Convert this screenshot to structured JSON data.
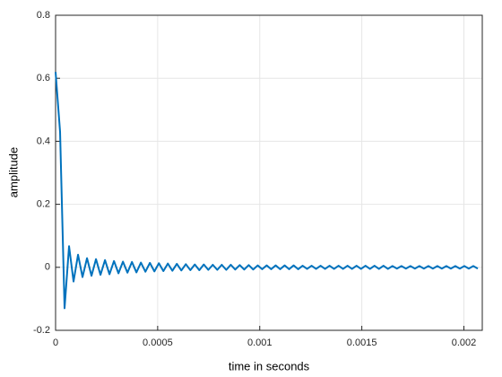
{
  "chart_data": {
    "type": "line",
    "xlabel": "time in seconds",
    "ylabel": "amplitude",
    "x": [
      0,
      2.2e-05,
      4.4e-05,
      6.6e-05,
      8.8e-05,
      0.00011,
      0.000132,
      0.000154,
      0.000176,
      0.000198,
      0.00022,
      0.000242,
      0.000264,
      0.000286,
      0.000308,
      0.00033,
      0.000352,
      0.000374,
      0.000396,
      0.000418,
      0.00044,
      0.000462,
      0.000484,
      0.000506,
      0.000528,
      0.00055,
      0.000572,
      0.000594,
      0.000616,
      0.000638,
      0.00066,
      0.000682,
      0.000704,
      0.000726,
      0.000748,
      0.00077,
      0.000792,
      0.000814,
      0.000836,
      0.000858,
      0.00088,
      0.000902,
      0.000924,
      0.000946,
      0.000968,
      0.00099,
      0.001012,
      0.001034,
      0.001056,
      0.001078,
      0.0011,
      0.001122,
      0.001144,
      0.001166,
      0.001188,
      0.00121,
      0.001232,
      0.001254,
      0.001276,
      0.001298,
      0.00132,
      0.001342,
      0.001364,
      0.001386,
      0.001408,
      0.00143,
      0.001452,
      0.001474,
      0.001496,
      0.001518,
      0.00154,
      0.001562,
      0.001584,
      0.001606,
      0.001628,
      0.00165,
      0.001672,
      0.001694,
      0.001716,
      0.001738,
      0.00176,
      0.001782,
      0.001804,
      0.001826,
      0.001848,
      0.00187,
      0.001892,
      0.001914,
      0.001936,
      0.001958,
      0.00198,
      0.002002,
      0.002024,
      0.002046,
      0.002068
    ],
    "values": [
      0.62,
      0.43,
      -0.13,
      0.067,
      -0.045,
      0.04,
      -0.031,
      0.029,
      -0.027,
      0.026,
      -0.024,
      0.023,
      -0.022,
      0.02,
      -0.019,
      0.018,
      -0.017,
      0.017,
      -0.016,
      0.015,
      -0.014,
      0.014,
      -0.013,
      0.013,
      -0.012,
      0.012,
      -0.011,
      0.011,
      -0.01,
      0.01,
      -0.009,
      0.009,
      -0.009,
      0.009,
      -0.008,
      0.008,
      -0.008,
      0.008,
      -0.008,
      0.008,
      -0.007,
      0.007,
      -0.007,
      0.007,
      -0.007,
      0.006,
      -0.006,
      0.006,
      -0.006,
      0.006,
      -0.006,
      0.006,
      -0.006,
      0.006,
      -0.006,
      0.005,
      -0.005,
      0.005,
      -0.005,
      0.005,
      -0.005,
      0.005,
      -0.005,
      0.005,
      -0.005,
      0.005,
      -0.005,
      0.005,
      -0.005,
      0.005,
      -0.005,
      0.005,
      -0.005,
      0.005,
      -0.005,
      0.004,
      -0.004,
      0.004,
      -0.004,
      0.004,
      -0.004,
      0.004,
      -0.004,
      0.004,
      -0.004,
      0.004,
      -0.004,
      0.004,
      -0.004,
      0.004,
      -0.004,
      0.004,
      -0.004,
      0.004,
      -0.004
    ],
    "color": "#0072bd",
    "xlim": [
      0,
      0.00209
    ],
    "xticks": [
      0,
      0.0005,
      0.001,
      0.0015,
      0.002
    ],
    "ylim": [
      -0.2,
      0.8
    ],
    "yticks": [
      -0.2,
      0,
      0.2,
      0.4,
      0.6,
      0.8
    ],
    "grid": true
  }
}
